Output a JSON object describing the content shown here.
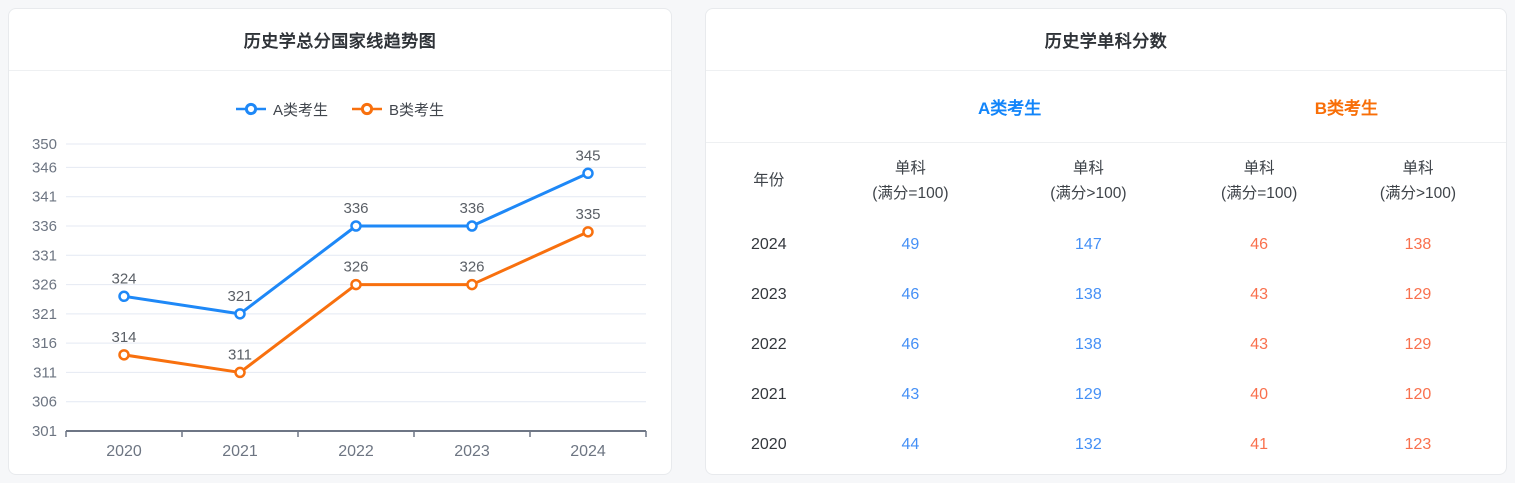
{
  "colors": {
    "page_bg": "#f6f7f9",
    "panel_border": "#e8eaed",
    "divider": "#eef0f2",
    "title_text": "#2f3338",
    "legend_text": "#41464d",
    "grid_line": "#e4e9f3",
    "axis_line": "#6e7685",
    "axis_label": "#6d7582",
    "point_label": "#5a5f66",
    "series_blue": "#1e88f7",
    "series_orange": "#f8700e",
    "value_blue": "#4590f6",
    "value_orange": "#f9704d"
  },
  "chart_data": {
    "type": "line",
    "title": "历史学总分国家线趋势图",
    "x": [
      "2020",
      "2021",
      "2022",
      "2023",
      "2024"
    ],
    "series": [
      {
        "name": "A类考生",
        "color": "#1e88f7",
        "values": [
          324,
          321,
          336,
          336,
          345
        ]
      },
      {
        "name": "B类考生",
        "color": "#f8700e",
        "values": [
          314,
          311,
          326,
          326,
          335
        ]
      }
    ],
    "ylim": [
      301,
      350
    ],
    "yticks": [
      301,
      306,
      311,
      316,
      321,
      326,
      331,
      336,
      341,
      346,
      350
    ],
    "grid": true,
    "legend_position": "top",
    "point_labels": true,
    "marker": "hollow-circle"
  },
  "left_panel": {
    "title": "历史学总分国家线趋势图"
  },
  "right_panel": {
    "title": "历史学单科分数",
    "year_header": "年份",
    "group_headers": [
      {
        "label": "A类考生",
        "color": "#1285fa"
      },
      {
        "label": "B类考生",
        "color": "#f86e07"
      }
    ],
    "columns": [
      {
        "line1": "单科",
        "line2": "(满分=100)"
      },
      {
        "line1": "单科",
        "line2": "(满分>100)"
      },
      {
        "line1": "单科",
        "line2": "(满分=100)"
      },
      {
        "line1": "单科",
        "line2": "(满分>100)"
      }
    ],
    "rows": [
      {
        "year": "2024",
        "values": [
          "49",
          "147",
          "46",
          "138"
        ]
      },
      {
        "year": "2023",
        "values": [
          "46",
          "138",
          "43",
          "129"
        ]
      },
      {
        "year": "2022",
        "values": [
          "46",
          "138",
          "43",
          "129"
        ]
      },
      {
        "year": "2021",
        "values": [
          "43",
          "129",
          "40",
          "120"
        ]
      },
      {
        "year": "2020",
        "values": [
          "44",
          "132",
          "41",
          "123"
        ]
      }
    ],
    "value_colors": [
      "#4590f6",
      "#4590f6",
      "#f9704d",
      "#f9704d"
    ]
  }
}
